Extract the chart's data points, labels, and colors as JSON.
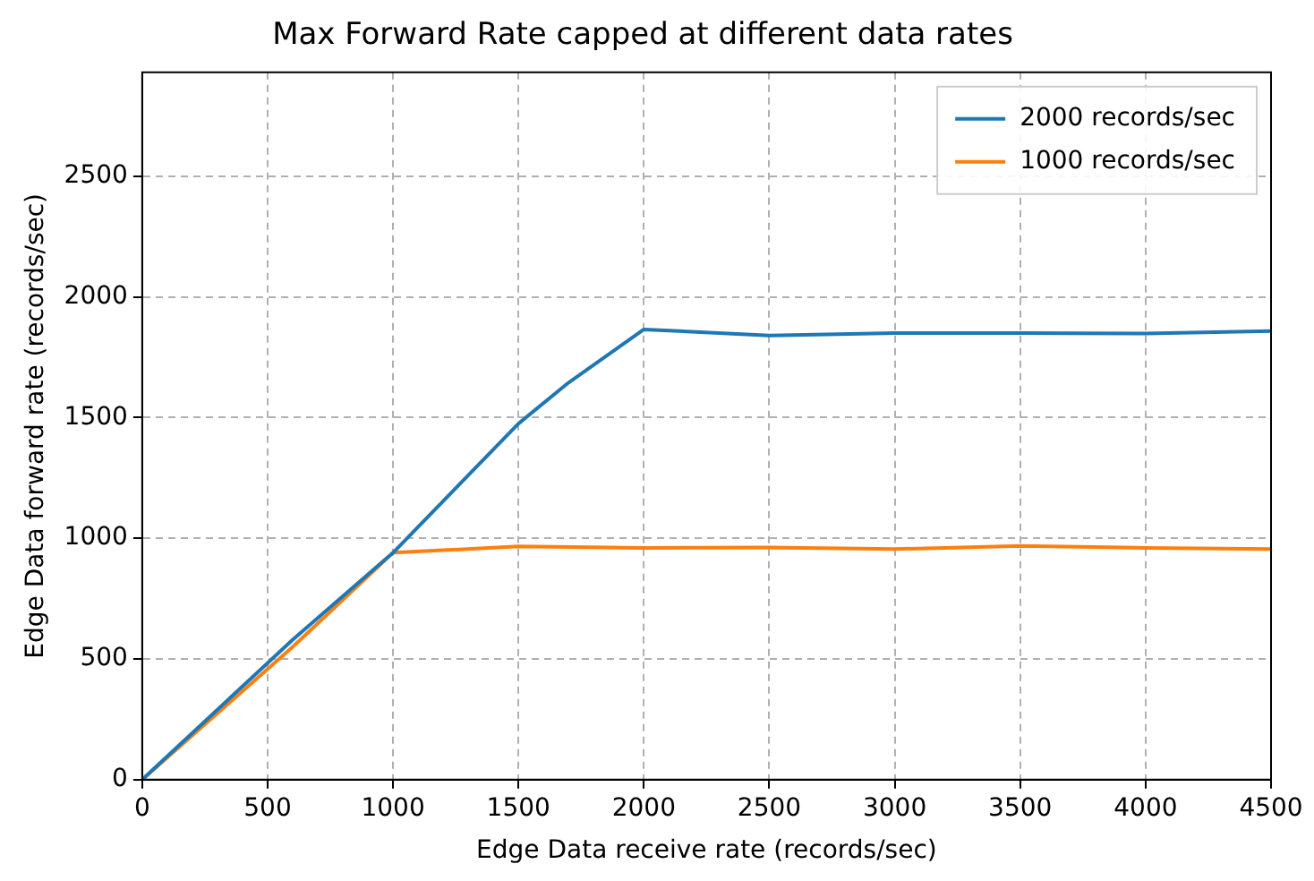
{
  "chart_data": {
    "type": "line",
    "title": "Max Forward Rate capped at different data rates",
    "xlabel": "Edge Data receive rate (records/sec)",
    "ylabel": "Edge Data forward rate (records/sec)",
    "xlim": [
      0,
      4500
    ],
    "xticks": [
      0,
      500,
      1000,
      1500,
      2000,
      2500,
      3000,
      3500,
      4000,
      4500
    ],
    "ylim": [
      0,
      2930
    ],
    "yticks": [
      0,
      500,
      1000,
      1500,
      2000,
      2500
    ],
    "grid": true,
    "legend": "top right",
    "line_style": "solid",
    "marker": "none",
    "series": [
      {
        "name": "2000 records/sec",
        "color": "#1f77b4",
        "x": [
          0,
          600,
          1000,
          1500,
          1700,
          2000,
          2500,
          3000,
          3500,
          4000,
          4500
        ],
        "values": [
          0,
          580,
          940,
          1475,
          1645,
          1865,
          1840,
          1850,
          1850,
          1848,
          1858
        ]
      },
      {
        "name": "1000 records/sec",
        "color": "#ff7f0e",
        "x": [
          0,
          600,
          1000,
          1500,
          2000,
          2500,
          3000,
          3500,
          4000,
          4500
        ],
        "values": [
          0,
          550,
          940,
          966,
          960,
          962,
          955,
          968,
          960,
          955
        ]
      }
    ]
  }
}
